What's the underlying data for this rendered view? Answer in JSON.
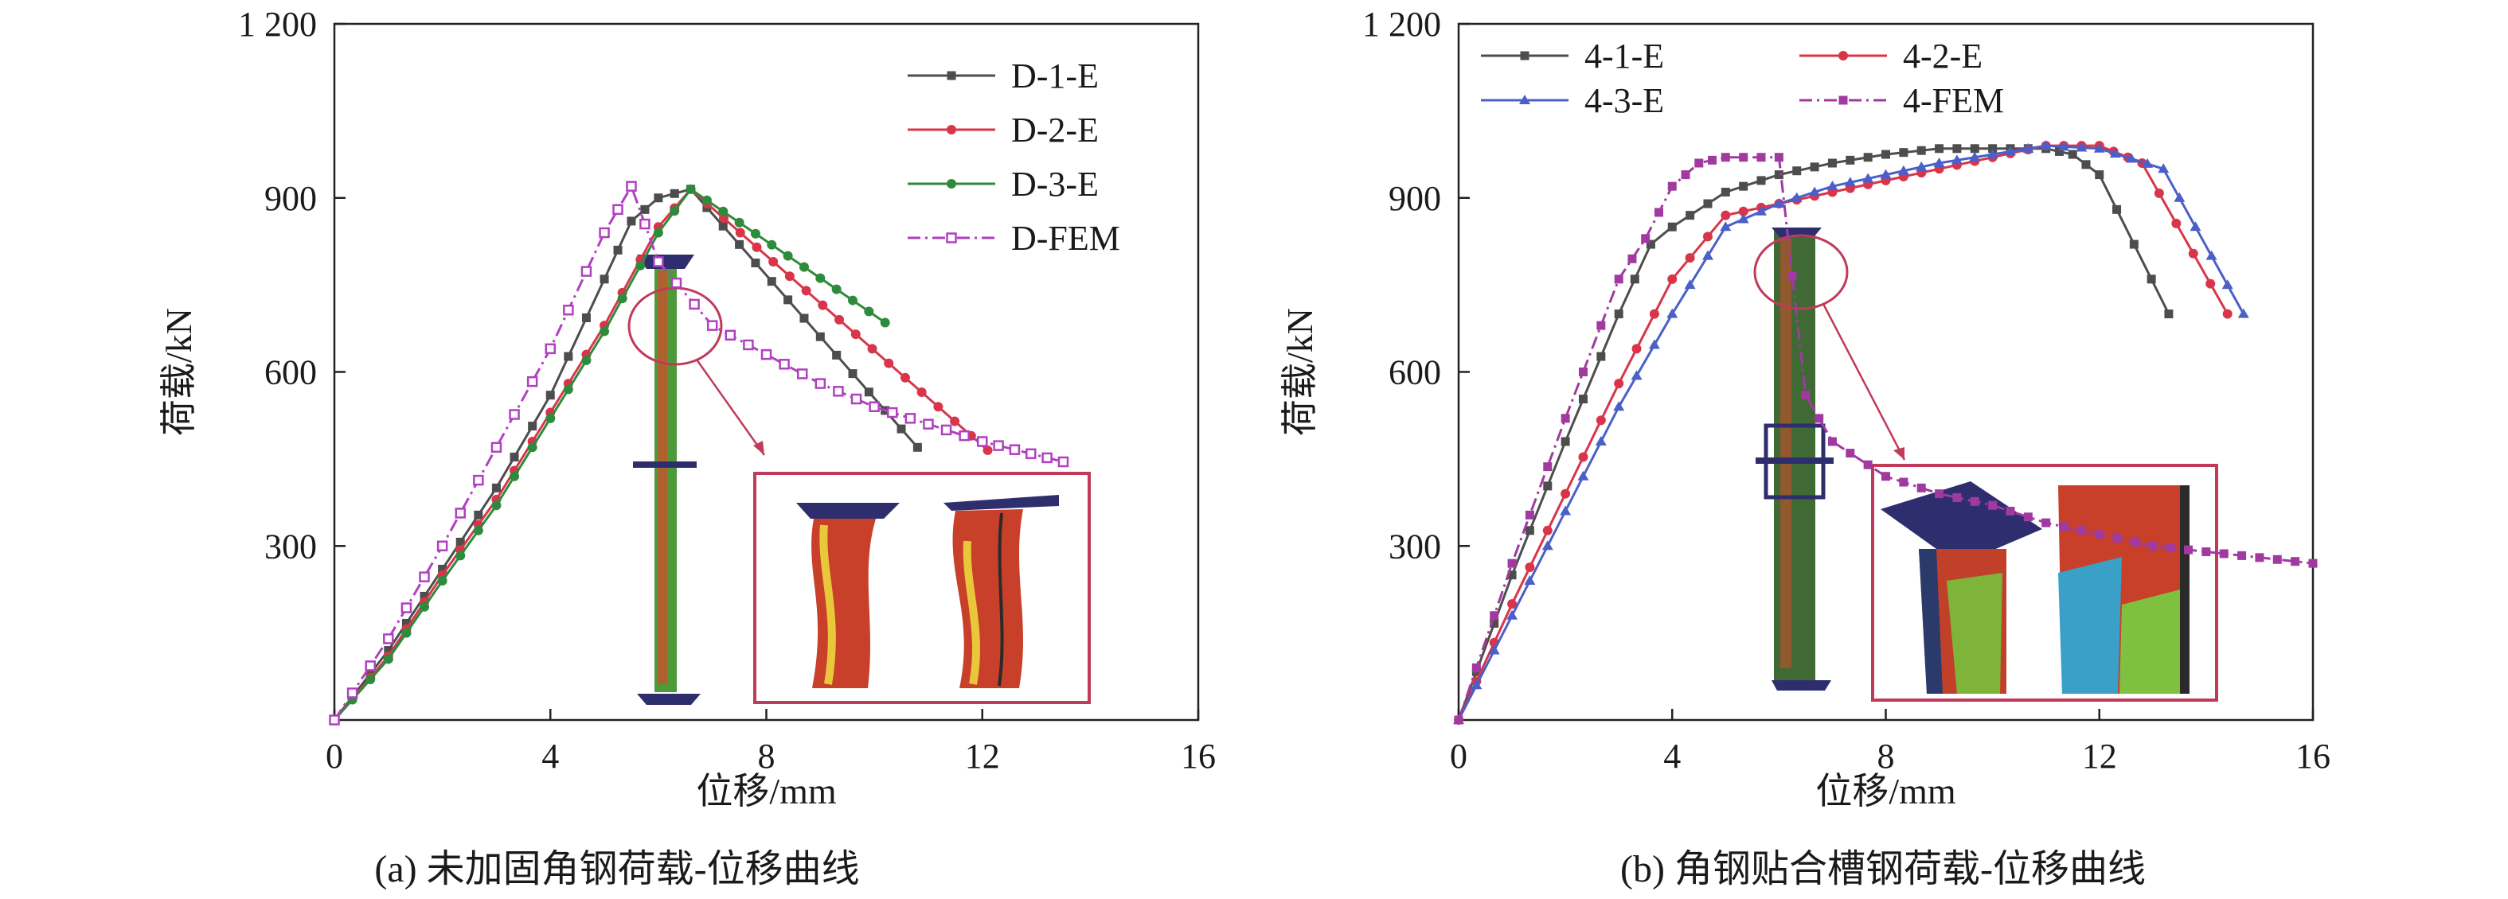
{
  "chart_data": [
    {
      "type": "line",
      "title": "",
      "caption": "(a) 未加固角钢荷载-位移曲线",
      "xlabel": "位移/mm",
      "ylabel": "荷载/kN",
      "xlim": [
        0,
        16
      ],
      "ylim": [
        0,
        1200
      ],
      "xticks": [
        0,
        4,
        8,
        12,
        16
      ],
      "yticks": [
        300,
        600,
        900,
        1200
      ],
      "xtick_labels": [
        "0",
        "4",
        "8",
        "12",
        "16"
      ],
      "ytick_labels": [
        "300",
        "600",
        "900",
        "1 200"
      ],
      "grid": false,
      "legend_position": "top-right",
      "inset": "specimen FE contour with circled buckling detail",
      "series": [
        {
          "name": "D-1-E",
          "color": "#4d4d4d",
          "marker": "square-filled",
          "dash": "solid",
          "x": [
            0,
            1,
            2,
            3,
            4,
            5,
            5.5,
            6,
            6.6,
            10.8
          ],
          "y": [
            0,
            120,
            260,
            400,
            560,
            760,
            860,
            900,
            915,
            470
          ]
        },
        {
          "name": "D-2-E",
          "color": "#d9354a",
          "marker": "circle-filled",
          "dash": "solid",
          "x": [
            0,
            1,
            2,
            3,
            4,
            5,
            6,
            6.6,
            12.1
          ],
          "y": [
            0,
            110,
            250,
            380,
            530,
            680,
            850,
            915,
            465
          ]
        },
        {
          "name": "D-3-E",
          "color": "#2e8b3d",
          "marker": "circle-filled",
          "dash": "solid",
          "x": [
            0,
            1,
            2,
            3,
            4,
            5,
            6,
            6.6,
            10.2
          ],
          "y": [
            0,
            105,
            240,
            370,
            520,
            670,
            840,
            915,
            685
          ]
        },
        {
          "name": "D-FEM",
          "color": "#b040c0",
          "marker": "square-open",
          "dash": "dashdot",
          "x": [
            0,
            1,
            2,
            3,
            4,
            5,
            5.5,
            6,
            7,
            8,
            9,
            10,
            11,
            12,
            13.5
          ],
          "y": [
            0,
            140,
            300,
            470,
            640,
            840,
            920,
            790,
            680,
            630,
            580,
            540,
            510,
            480,
            445
          ]
        }
      ]
    },
    {
      "type": "line",
      "title": "",
      "caption": "(b) 角钢贴合槽钢荷载-位移曲线",
      "xlabel": "位移/mm",
      "ylabel": "荷载/kN",
      "xlim": [
        0,
        16
      ],
      "ylim": [
        0,
        1200
      ],
      "xticks": [
        0,
        4,
        8,
        12,
        16
      ],
      "yticks": [
        300,
        600,
        900,
        1200
      ],
      "xtick_labels": [
        "0",
        "4",
        "8",
        "12",
        "16"
      ],
      "ytick_labels": [
        "300",
        "600",
        "900",
        "1 200"
      ],
      "grid": false,
      "legend_position": "top-left",
      "inset": "strengthened specimen FE contour with circled detail",
      "series": [
        {
          "name": "4-1-E",
          "color": "#4d4d4d",
          "marker": "square-filled",
          "dash": "solid",
          "x": [
            0,
            1,
            2,
            3,
            3.6,
            4,
            5,
            6,
            7,
            8,
            9,
            10,
            11,
            11.5,
            12,
            13.3
          ],
          "y": [
            0,
            250,
            480,
            700,
            820,
            850,
            910,
            940,
            960,
            975,
            985,
            985,
            985,
            975,
            940,
            700
          ]
        },
        {
          "name": "4-2-E",
          "color": "#d9354a",
          "marker": "circle-filled",
          "dash": "solid",
          "x": [
            0,
            1,
            2,
            3,
            4,
            5,
            6,
            7,
            8,
            9,
            10,
            11,
            12,
            12.8,
            14.4
          ],
          "y": [
            0,
            200,
            390,
            580,
            760,
            870,
            890,
            910,
            930,
            950,
            970,
            990,
            990,
            960,
            700
          ]
        },
        {
          "name": "4-3-E",
          "color": "#4a5fc8",
          "marker": "triangle-filled",
          "dash": "solid",
          "x": [
            0,
            1,
            2,
            3,
            4,
            5,
            6,
            7,
            8,
            9,
            10,
            11,
            12,
            13.2,
            14.7
          ],
          "y": [
            0,
            180,
            360,
            540,
            700,
            850,
            890,
            920,
            940,
            960,
            975,
            990,
            985,
            950,
            700
          ]
        },
        {
          "name": "4-FEM",
          "color": "#a03aa0",
          "marker": "square-filled",
          "dash": "dashdot",
          "x": [
            0,
            1,
            2,
            3,
            3.5,
            4,
            4.5,
            5,
            6,
            6.5,
            7,
            8,
            9,
            10,
            11,
            12,
            13,
            14,
            15,
            16
          ],
          "y": [
            0,
            270,
            520,
            760,
            830,
            920,
            960,
            970,
            970,
            560,
            480,
            420,
            390,
            370,
            340,
            320,
            300,
            290,
            280,
            270
          ]
        }
      ]
    }
  ]
}
